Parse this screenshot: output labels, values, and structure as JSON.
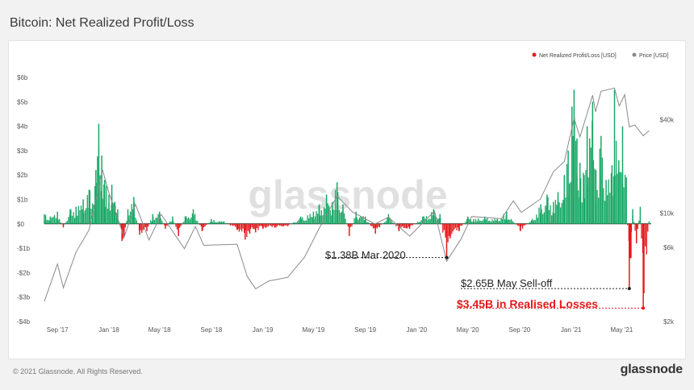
{
  "title": "Bitcoin: Net Realized Profit/Loss",
  "footer": {
    "copyright": "© 2021 Glassnode. All Rights Reserved.",
    "brand": "glassnode"
  },
  "watermark": "glassnode",
  "colors": {
    "profit": "#1aa866",
    "loss": "#e5191b",
    "price": "#8a8a8a",
    "zero_line": "#222222"
  },
  "legend": {
    "placement": "top-right",
    "items": [
      {
        "label": "Net Realized Profit/Loss [USD]",
        "color": "#e5191b"
      },
      {
        "label": "Price [USD]",
        "color": "#8a8a8a"
      }
    ]
  },
  "annotations": [
    {
      "text": "$1.38B Mar 2020",
      "date": "2020-03-12",
      "value": -1.38,
      "color": "#222222"
    },
    {
      "text": "$2.65B May Sell-off",
      "date": "2021-05-19",
      "value": -2.65,
      "color": "#222222"
    },
    {
      "text": "$3.45B in Realised Losses",
      "date": "2021-06-21",
      "value": -3.45,
      "color": "#e5191b"
    }
  ],
  "chart_data": {
    "type": "bar",
    "title": "Bitcoin: Net Realized Profit/Loss",
    "x_ticks": [
      "Sep '17",
      "Jan '18",
      "May '18",
      "Sep '18",
      "Jan '19",
      "May '19",
      "Sep '19",
      "Jan '20",
      "May '20",
      "Sep '20",
      "Jan '21",
      "May '21"
    ],
    "x_tick_dates": [
      "2017-09-01",
      "2018-01-01",
      "2018-05-01",
      "2018-09-01",
      "2019-01-01",
      "2019-05-01",
      "2019-09-01",
      "2020-01-01",
      "2020-05-01",
      "2020-09-01",
      "2021-01-01",
      "2021-05-01"
    ],
    "xlim": [
      "2017-08-01",
      "2021-07-10"
    ],
    "y_left": {
      "ticks": [
        "$6b",
        "$5b",
        "$4b",
        "$3b",
        "$2b",
        "$1b",
        "$0",
        "-$1b",
        "-$2b",
        "-$3b",
        "-$4b"
      ],
      "tick_values": [
        6,
        5,
        4,
        3,
        2,
        1,
        0,
        -1,
        -2,
        -3,
        -4
      ],
      "unit": "USD billions",
      "ylim": [
        -4,
        6
      ]
    },
    "y_right": {
      "scale": "log",
      "ticks": [
        "$40k",
        "$10k",
        "$6k",
        "$2k"
      ],
      "tick_values": [
        40000,
        10000,
        6000,
        2000
      ]
    },
    "grid": false,
    "series": [
      {
        "name": "Net Realized Profit/Loss [USD]",
        "kind": "bar",
        "unit": "USD billions",
        "points": [
          [
            "2017-08-01",
            0.4
          ],
          [
            "2017-08-15",
            0.3
          ],
          [
            "2017-09-01",
            0.5
          ],
          [
            "2017-09-15",
            -0.15
          ],
          [
            "2017-10-01",
            0.6
          ],
          [
            "2017-10-15",
            0.7
          ],
          [
            "2017-11-01",
            1.0
          ],
          [
            "2017-11-15",
            1.4
          ],
          [
            "2017-12-01",
            2.2
          ],
          [
            "2017-12-08",
            4.1
          ],
          [
            "2017-12-15",
            2.8
          ],
          [
            "2017-12-22",
            1.8
          ],
          [
            "2018-01-01",
            1.2
          ],
          [
            "2018-01-08",
            1.6
          ],
          [
            "2018-01-15",
            0.9
          ],
          [
            "2018-01-22",
            0.6
          ],
          [
            "2018-02-01",
            -0.7
          ],
          [
            "2018-02-06",
            -0.55
          ],
          [
            "2018-02-15",
            0.6
          ],
          [
            "2018-03-01",
            1.1
          ],
          [
            "2018-03-15",
            -0.45
          ],
          [
            "2018-04-01",
            -0.3
          ],
          [
            "2018-04-15",
            0.4
          ],
          [
            "2018-05-01",
            0.5
          ],
          [
            "2018-05-15",
            -0.2
          ],
          [
            "2018-06-01",
            0.3
          ],
          [
            "2018-06-15",
            -0.5
          ],
          [
            "2018-07-01",
            0.3
          ],
          [
            "2018-07-20",
            0.6
          ],
          [
            "2018-08-10",
            -0.3
          ],
          [
            "2018-09-01",
            0.2
          ],
          [
            "2018-10-01",
            0.1
          ],
          [
            "2018-11-01",
            -0.25
          ],
          [
            "2018-11-20",
            -0.65
          ],
          [
            "2018-12-01",
            -0.4
          ],
          [
            "2018-12-15",
            -0.35
          ],
          [
            "2019-01-01",
            -0.2
          ],
          [
            "2019-02-01",
            -0.15
          ],
          [
            "2019-03-01",
            -0.1
          ],
          [
            "2019-04-01",
            0.3
          ],
          [
            "2019-05-01",
            0.5
          ],
          [
            "2019-05-15",
            0.8
          ],
          [
            "2019-06-01",
            1.2
          ],
          [
            "2019-06-15",
            0.9
          ],
          [
            "2019-06-26",
            1.7
          ],
          [
            "2019-07-10",
            0.8
          ],
          [
            "2019-07-25",
            -0.5
          ],
          [
            "2019-08-10",
            0.5
          ],
          [
            "2019-09-01",
            0.3
          ],
          [
            "2019-09-25",
            -0.4
          ],
          [
            "2019-10-26",
            0.4
          ],
          [
            "2019-11-20",
            -0.3
          ],
          [
            "2019-12-15",
            -0.2
          ],
          [
            "2020-01-15",
            0.3
          ],
          [
            "2020-02-10",
            0.6
          ],
          [
            "2020-02-25",
            0.4
          ],
          [
            "2020-03-12",
            -1.38
          ],
          [
            "2020-03-20",
            -0.6
          ],
          [
            "2020-04-10",
            -0.3
          ],
          [
            "2020-05-01",
            0.3
          ],
          [
            "2020-05-15",
            0.2
          ],
          [
            "2020-06-10",
            0.3
          ],
          [
            "2020-07-10",
            0.2
          ],
          [
            "2020-08-01",
            0.5
          ],
          [
            "2020-09-03",
            -0.3
          ],
          [
            "2020-10-01",
            0.2
          ],
          [
            "2020-10-21",
            0.8
          ],
          [
            "2020-11-05",
            1.2
          ],
          [
            "2020-11-20",
            0.9
          ],
          [
            "2020-12-01",
            1.3
          ],
          [
            "2020-12-16",
            2.0
          ],
          [
            "2020-12-25",
            3.0
          ],
          [
            "2021-01-03",
            4.8
          ],
          [
            "2021-01-08",
            5.5
          ],
          [
            "2021-01-15",
            3.5
          ],
          [
            "2021-01-22",
            2.5
          ],
          [
            "2021-02-01",
            2.0
          ],
          [
            "2021-02-08",
            4.0
          ],
          [
            "2021-02-14",
            3.5
          ],
          [
            "2021-02-21",
            5.0
          ],
          [
            "2021-03-01",
            2.2
          ],
          [
            "2021-03-13",
            3.6
          ],
          [
            "2021-03-25",
            1.8
          ],
          [
            "2021-04-08",
            2.4
          ],
          [
            "2021-04-14",
            5.5
          ],
          [
            "2021-04-24",
            2.6
          ],
          [
            "2021-05-03",
            4.0
          ],
          [
            "2021-05-12",
            1.9
          ],
          [
            "2021-05-19",
            -2.65
          ],
          [
            "2021-05-23",
            -1.4
          ],
          [
            "2021-05-27",
            0.6
          ],
          [
            "2021-06-05",
            -0.8
          ],
          [
            "2021-06-14",
            0.7
          ],
          [
            "2021-06-21",
            -3.45
          ],
          [
            "2021-07-05",
            0.1
          ]
        ]
      },
      {
        "name": "Price [USD]",
        "kind": "line",
        "unit": "USD",
        "points": [
          [
            "2017-08-01",
            2700
          ],
          [
            "2017-09-01",
            4700
          ],
          [
            "2017-09-15",
            3300
          ],
          [
            "2017-10-15",
            5600
          ],
          [
            "2017-11-15",
            7800
          ],
          [
            "2017-12-17",
            19000
          ],
          [
            "2018-01-01",
            13500
          ],
          [
            "2018-02-06",
            7000
          ],
          [
            "2018-03-05",
            11400
          ],
          [
            "2018-04-06",
            6700
          ],
          [
            "2018-05-05",
            9800
          ],
          [
            "2018-06-29",
            5900
          ],
          [
            "2018-07-25",
            8200
          ],
          [
            "2018-08-14",
            6200
          ],
          [
            "2018-11-01",
            6300
          ],
          [
            "2018-11-25",
            3900
          ],
          [
            "2018-12-15",
            3250
          ],
          [
            "2019-01-15",
            3650
          ],
          [
            "2019-03-01",
            3850
          ],
          [
            "2019-04-10",
            5200
          ],
          [
            "2019-05-15",
            8000
          ],
          [
            "2019-06-26",
            12900
          ],
          [
            "2019-08-01",
            10200
          ],
          [
            "2019-09-24",
            8500
          ],
          [
            "2019-10-26",
            9400
          ],
          [
            "2019-12-15",
            7100
          ],
          [
            "2020-02-12",
            10300
          ],
          [
            "2020-03-12",
            4900
          ],
          [
            "2020-04-15",
            6800
          ],
          [
            "2020-05-10",
            9500
          ],
          [
            "2020-07-20",
            9200
          ],
          [
            "2020-08-17",
            12000
          ],
          [
            "2020-09-05",
            10100
          ],
          [
            "2020-10-20",
            12300
          ],
          [
            "2020-11-20",
            18500
          ],
          [
            "2020-12-16",
            21500
          ],
          [
            "2021-01-08",
            40800
          ],
          [
            "2021-01-22",
            31000
          ],
          [
            "2021-02-21",
            57500
          ],
          [
            "2021-02-28",
            45000
          ],
          [
            "2021-03-13",
            61000
          ],
          [
            "2021-04-14",
            64000
          ],
          [
            "2021-04-25",
            49000
          ],
          [
            "2021-05-08",
            58000
          ],
          [
            "2021-05-19",
            36000
          ],
          [
            "2021-06-01",
            37000
          ],
          [
            "2021-06-21",
            31500
          ],
          [
            "2021-07-05",
            34000
          ]
        ]
      }
    ]
  }
}
